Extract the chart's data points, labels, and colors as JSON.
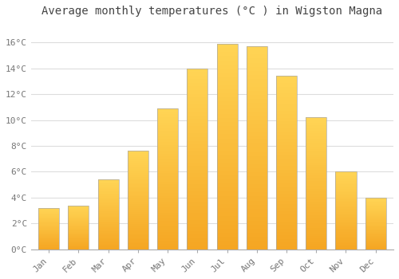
{
  "title": "Average monthly temperatures (°C ) in Wigston Magna",
  "months": [
    "Jan",
    "Feb",
    "Mar",
    "Apr",
    "May",
    "Jun",
    "Jul",
    "Aug",
    "Sep",
    "Oct",
    "Nov",
    "Dec"
  ],
  "values": [
    3.2,
    3.4,
    5.4,
    7.6,
    10.9,
    14.0,
    15.9,
    15.7,
    13.4,
    10.2,
    6.0,
    4.0
  ],
  "bar_color_bottom": "#F5A623",
  "bar_color_top": "#FFD454",
  "bar_edge_color": "#AAAAAA",
  "background_color": "#FFFFFF",
  "grid_color": "#DDDDDD",
  "ylim": [
    0,
    17.5
  ],
  "yticks": [
    0,
    2,
    4,
    6,
    8,
    10,
    12,
    14,
    16
  ],
  "ytick_labels": [
    "0°C",
    "2°C",
    "4°C",
    "6°C",
    "8°C",
    "10°C",
    "12°C",
    "14°C",
    "16°C"
  ],
  "title_fontsize": 10,
  "tick_fontsize": 8,
  "title_color": "#444444",
  "tick_color": "#777777",
  "bar_width": 0.7
}
